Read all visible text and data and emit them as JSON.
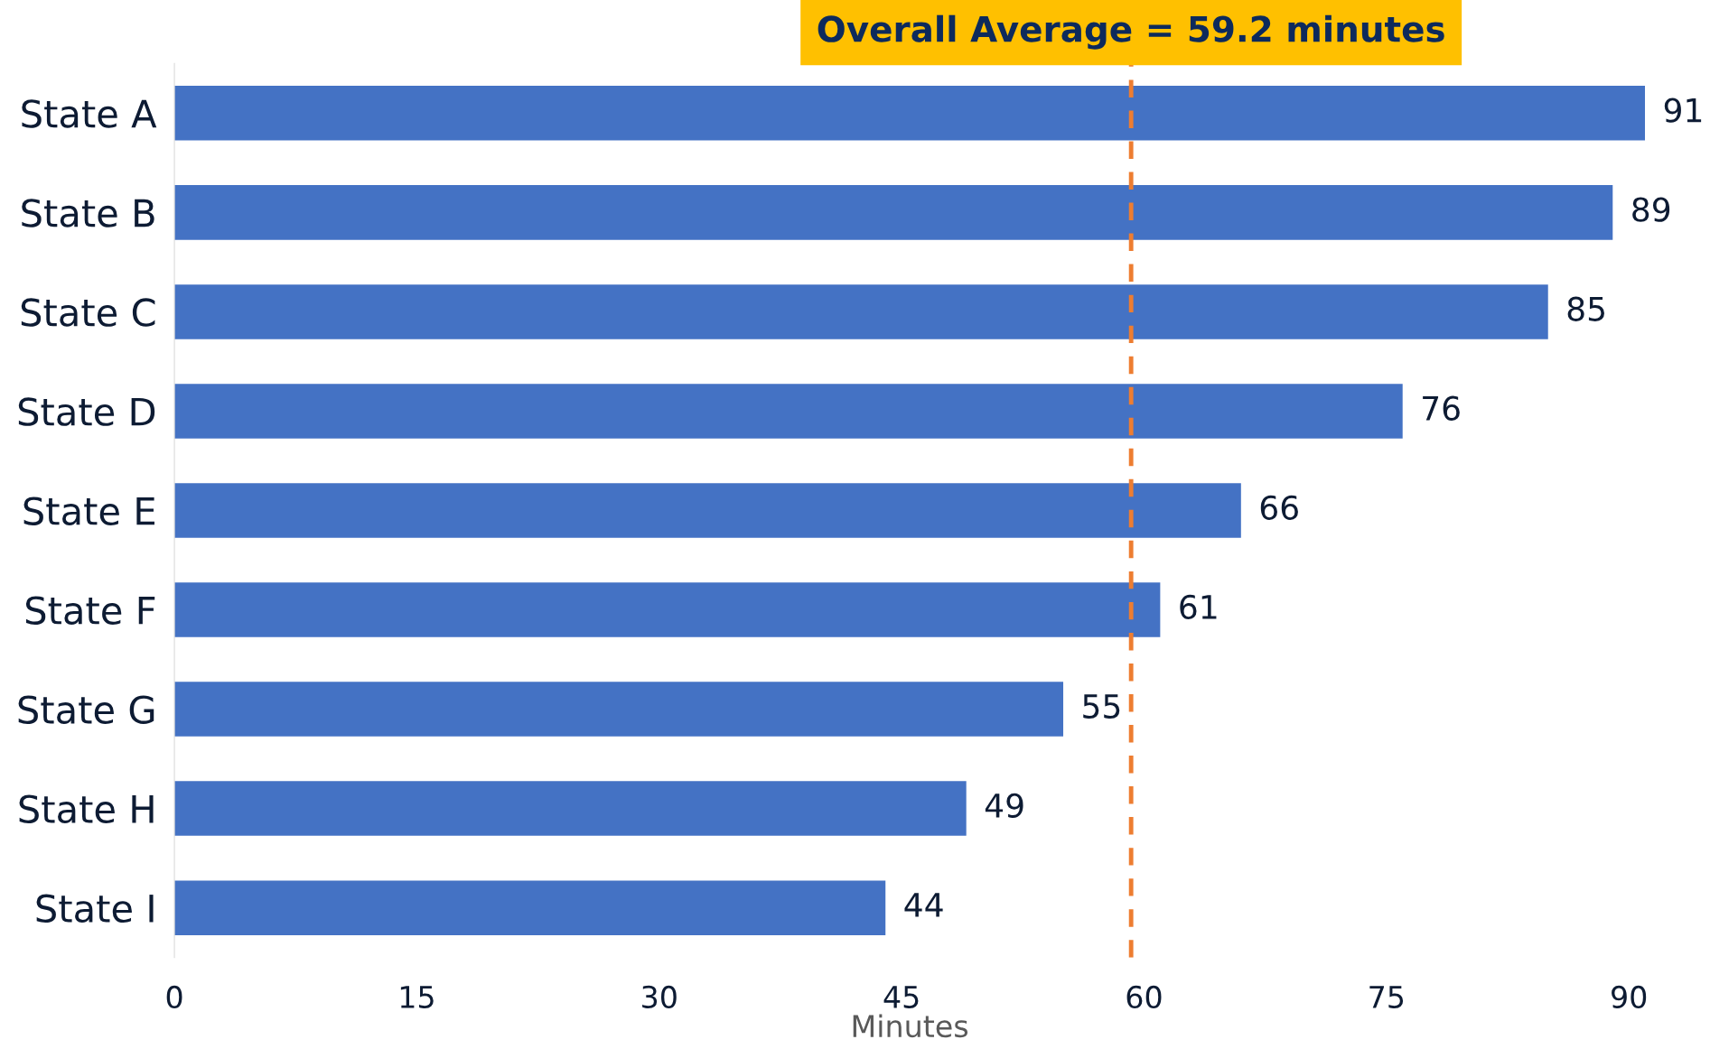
{
  "chart_data": {
    "type": "bar",
    "orientation": "horizontal",
    "xlabel": "Minutes",
    "categories": [
      "State A",
      "State B",
      "State C",
      "State D",
      "State E",
      "State F",
      "State G",
      "State H",
      "State I"
    ],
    "values": [
      91,
      89,
      85,
      76,
      66,
      61,
      55,
      49,
      44
    ],
    "color": "#4472c4",
    "xlim": [
      0,
      91
    ],
    "xticks": [
      0,
      15,
      30,
      45,
      60,
      75,
      90
    ],
    "data_labels": true,
    "grid": false,
    "legend": false,
    "ref_lines": [
      {
        "axis": "x",
        "value": 59.2,
        "label": "Overall Average = 59.2 minutes",
        "color": "#ed7d31",
        "line_style": "dashed"
      }
    ]
  }
}
